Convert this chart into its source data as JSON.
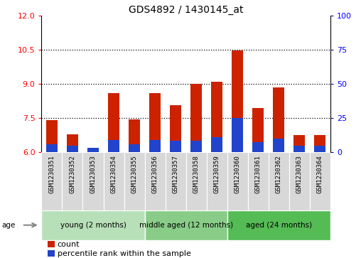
{
  "title": "GDS4892 / 1430145_at",
  "samples": [
    "GSM1230351",
    "GSM1230352",
    "GSM1230353",
    "GSM1230354",
    "GSM1230355",
    "GSM1230356",
    "GSM1230357",
    "GSM1230358",
    "GSM1230359",
    "GSM1230360",
    "GSM1230361",
    "GSM1230362",
    "GSM1230363",
    "GSM1230364"
  ],
  "count_values": [
    7.4,
    6.8,
    6.15,
    8.6,
    7.45,
    8.6,
    8.05,
    9.0,
    9.1,
    10.48,
    7.95,
    8.85,
    6.75,
    6.75
  ],
  "percentile_values": [
    6.35,
    6.3,
    6.2,
    6.55,
    6.35,
    6.55,
    6.5,
    6.5,
    6.65,
    7.5,
    6.45,
    6.6,
    6.3,
    6.3
  ],
  "count_color": "#cc2200",
  "percentile_color": "#2244cc",
  "ylim_left": [
    6,
    12
  ],
  "ylim_right": [
    0,
    100
  ],
  "yticks_left": [
    6,
    7.5,
    9,
    10.5,
    12
  ],
  "yticks_right": [
    0,
    25,
    50,
    75,
    100
  ],
  "groups": [
    {
      "label": "young (2 months)",
      "start": 0,
      "end": 5,
      "color": "#b8e0b8"
    },
    {
      "label": "middle aged (12 months)",
      "start": 5,
      "end": 9,
      "color": "#88cc88"
    },
    {
      "label": "aged (24 months)",
      "start": 9,
      "end": 14,
      "color": "#55bb55"
    }
  ],
  "age_label": "age",
  "legend_count": "count",
  "legend_percentile": "percentile rank within the sample",
  "bar_width": 0.55,
  "title_fontsize": 10,
  "tick_fontsize": 8,
  "label_fontsize": 6.5,
  "background_color": "#ffffff",
  "plot_bg_color": "#ffffff"
}
